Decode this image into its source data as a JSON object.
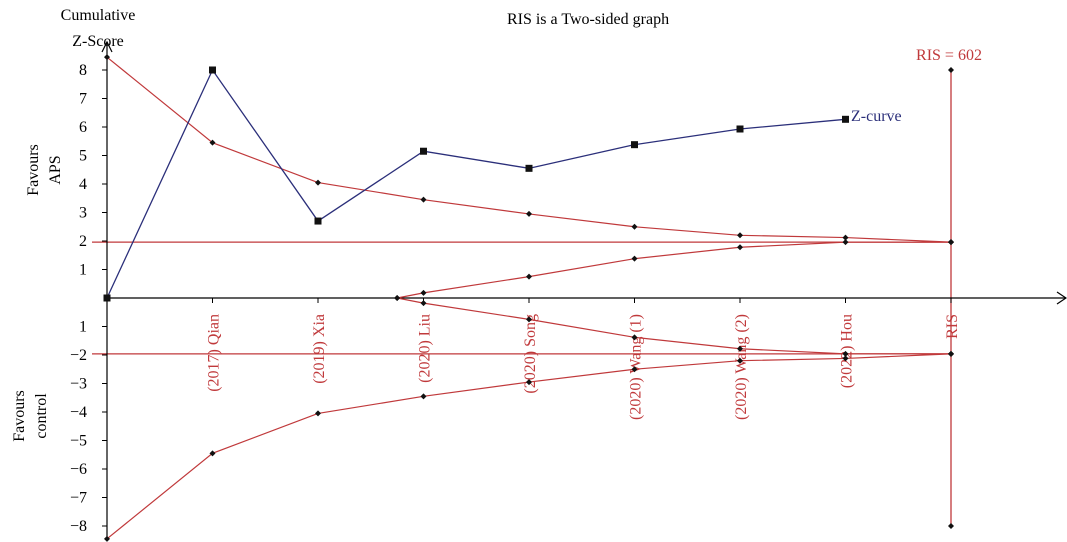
{
  "chart_data": {
    "type": "line",
    "title": "RIS is a Two-sided graph",
    "ylabel": "Cumulative Z-Score",
    "ylabel_top": "Favours APS",
    "ylabel_bottom": "Favours control",
    "ylim": [
      -8,
      8
    ],
    "yticks_positive": [
      "1",
      "2",
      "3",
      "4",
      "5",
      "6",
      "7",
      "8"
    ],
    "yticks_negative": [
      "1",
      "−2",
      "−3",
      "−4",
      "−5",
      "−6",
      "−7",
      "−8"
    ],
    "categories": [
      "(2017) Qian",
      "(2019) Xia",
      "(2020) Liu",
      "(2020) Song",
      "(2020) Wang (1)",
      "(2020) Wang (2)",
      "(2022) Hou",
      "RIS"
    ],
    "ris_label": "RIS = 602",
    "zcurve_label": "Z-curve",
    "significance_level": 1.96,
    "zcurve": [
      {
        "x": 0,
        "y": 0
      },
      {
        "x": 1,
        "y": 8.0
      },
      {
        "x": 2,
        "y": 2.7
      },
      {
        "x": 3,
        "y": 5.15
      },
      {
        "x": 4,
        "y": 4.55
      },
      {
        "x": 5,
        "y": 5.38
      },
      {
        "x": 6,
        "y": 5.93
      },
      {
        "x": 7,
        "y": 6.27
      }
    ],
    "boundary_upper": [
      {
        "x": 0,
        "y": 8.45
      },
      {
        "x": 1,
        "y": 5.45
      },
      {
        "x": 2,
        "y": 4.05
      },
      {
        "x": 3,
        "y": 3.45
      },
      {
        "x": 4,
        "y": 2.95
      },
      {
        "x": 5,
        "y": 2.5
      },
      {
        "x": 6,
        "y": 2.2
      },
      {
        "x": 7,
        "y": 2.12
      },
      {
        "x": 8,
        "y": 1.96
      }
    ],
    "boundary_lower": [
      {
        "x": 0,
        "y": -8.45
      },
      {
        "x": 1,
        "y": -5.45
      },
      {
        "x": 2,
        "y": -4.05
      },
      {
        "x": 3,
        "y": -3.45
      },
      {
        "x": 4,
        "y": -2.95
      },
      {
        "x": 5,
        "y": -2.5
      },
      {
        "x": 6,
        "y": -2.2
      },
      {
        "x": 7,
        "y": -2.12
      },
      {
        "x": 8,
        "y": -1.96
      }
    ],
    "futility_upper": [
      {
        "x": 2.75,
        "y": 0
      },
      {
        "x": 3,
        "y": 0.18
      },
      {
        "x": 4,
        "y": 0.75
      },
      {
        "x": 5,
        "y": 1.38
      },
      {
        "x": 6,
        "y": 1.78
      },
      {
        "x": 7,
        "y": 1.96
      },
      {
        "x": 8,
        "y": 1.96
      }
    ],
    "futility_lower": [
      {
        "x": 2.75,
        "y": 0
      },
      {
        "x": 3,
        "y": -0.18
      },
      {
        "x": 4,
        "y": -0.75
      },
      {
        "x": 5,
        "y": -1.38
      },
      {
        "x": 6,
        "y": -1.78
      },
      {
        "x": 7,
        "y": -1.96
      },
      {
        "x": 8,
        "y": -1.96
      }
    ],
    "ris_markers": [
      {
        "x": 8,
        "y": 8
      },
      {
        "x": 8,
        "y": 1.96
      },
      {
        "x": 8,
        "y": -1.96
      },
      {
        "x": 8,
        "y": -8
      }
    ],
    "colors": {
      "zcurve": "#2b2f7a",
      "boundary": "#c0393b",
      "ris_text": "#c0393b",
      "axis": "#000000",
      "category_text": "#c0393b"
    }
  }
}
